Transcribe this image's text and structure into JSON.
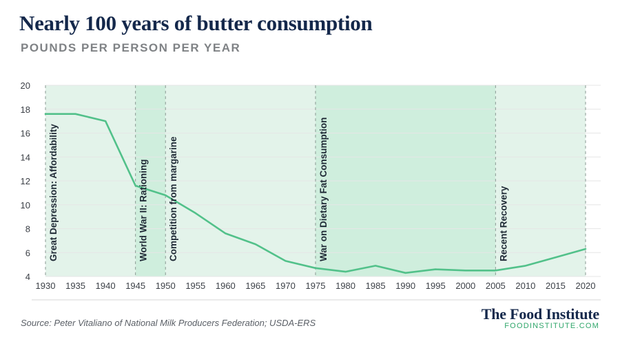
{
  "header": {
    "title": "Nearly 100 years of butter consumption",
    "subtitle": "POUNDS PER PERSON PER YEAR"
  },
  "footer": {
    "source": "Source: Peter Vitaliano of National Milk Producers Federation; USDA-ERS",
    "brand_name": "The Food Institute",
    "brand_url": "FOODINSTITUTE.COM"
  },
  "colors": {
    "line": "#52c18a",
    "band_light": "#e3f3ea",
    "band_dark": "#cfeedd",
    "divider": "#8a9a93",
    "grid": "#e6e6e6",
    "axis_text": "#3b3f46",
    "annotation_text": "#1f2a36"
  },
  "chart_data": {
    "type": "line",
    "x": [
      1930,
      1935,
      1940,
      1945,
      1950,
      1955,
      1960,
      1965,
      1970,
      1975,
      1980,
      1985,
      1990,
      1995,
      2000,
      2005,
      2010,
      2015,
      2020
    ],
    "series": [
      {
        "values": [
          17.6,
          17.6,
          17.0,
          11.6,
          10.8,
          9.3,
          7.6,
          6.7,
          5.3,
          4.7,
          4.4,
          4.9,
          4.3,
          4.6,
          4.5,
          4.5,
          4.9,
          5.6,
          6.3
        ]
      }
    ],
    "xlim": [
      1930,
      2020
    ],
    "ylim": [
      4,
      20
    ],
    "yticks": [
      4,
      6,
      8,
      10,
      12,
      14,
      16,
      18,
      20
    ],
    "xticks": [
      1930,
      1935,
      1940,
      1945,
      1950,
      1955,
      1960,
      1965,
      1970,
      1975,
      1980,
      1985,
      1990,
      1995,
      2000,
      2005,
      2010,
      2015,
      2020
    ],
    "grid": true,
    "periods": [
      {
        "start": 1930,
        "end": 1945,
        "label": "Great Depression: Affordability",
        "shade": "light"
      },
      {
        "start": 1945,
        "end": 1950,
        "label": "World War II: Rationing",
        "shade": "dark"
      },
      {
        "start": 1950,
        "end": 1975,
        "label": "Competition from margarine",
        "shade": "light"
      },
      {
        "start": 1975,
        "end": 2005,
        "label": "War on Dietary Fat Consumption",
        "shade": "dark"
      },
      {
        "start": 2005,
        "end": 2020,
        "label": "Recent Recovery",
        "shade": "light"
      }
    ]
  }
}
